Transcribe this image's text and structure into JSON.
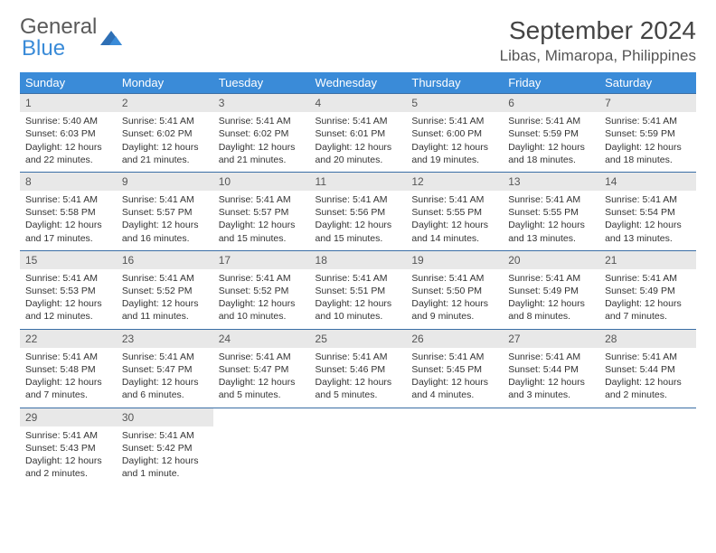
{
  "brand": {
    "line1": "General",
    "line2": "Blue"
  },
  "title": "September 2024",
  "subtitle": "Libas, Mimaropa, Philippines",
  "colors": {
    "header_bg": "#3a8bd8",
    "header_fg": "#ffffff",
    "daynum_bg": "#e8e8e8",
    "row_border": "#3a6ea5",
    "text": "#333333",
    "brand_accent": "#3a8bd8"
  },
  "typography": {
    "title_fontsize": 28,
    "subtitle_fontsize": 17,
    "cell_fontsize": 10.5,
    "header_fontsize": 13
  },
  "layout": {
    "cols": 7,
    "rows": 5,
    "col_width_pct": 14.285
  },
  "weekdays": [
    "Sunday",
    "Monday",
    "Tuesday",
    "Wednesday",
    "Thursday",
    "Friday",
    "Saturday"
  ],
  "days": [
    {
      "n": 1,
      "sunrise": "5:40 AM",
      "sunset": "6:03 PM",
      "daylight": "12 hours and 22 minutes."
    },
    {
      "n": 2,
      "sunrise": "5:41 AM",
      "sunset": "6:02 PM",
      "daylight": "12 hours and 21 minutes."
    },
    {
      "n": 3,
      "sunrise": "5:41 AM",
      "sunset": "6:02 PM",
      "daylight": "12 hours and 21 minutes."
    },
    {
      "n": 4,
      "sunrise": "5:41 AM",
      "sunset": "6:01 PM",
      "daylight": "12 hours and 20 minutes."
    },
    {
      "n": 5,
      "sunrise": "5:41 AM",
      "sunset": "6:00 PM",
      "daylight": "12 hours and 19 minutes."
    },
    {
      "n": 6,
      "sunrise": "5:41 AM",
      "sunset": "5:59 PM",
      "daylight": "12 hours and 18 minutes."
    },
    {
      "n": 7,
      "sunrise": "5:41 AM",
      "sunset": "5:59 PM",
      "daylight": "12 hours and 18 minutes."
    },
    {
      "n": 8,
      "sunrise": "5:41 AM",
      "sunset": "5:58 PM",
      "daylight": "12 hours and 17 minutes."
    },
    {
      "n": 9,
      "sunrise": "5:41 AM",
      "sunset": "5:57 PM",
      "daylight": "12 hours and 16 minutes."
    },
    {
      "n": 10,
      "sunrise": "5:41 AM",
      "sunset": "5:57 PM",
      "daylight": "12 hours and 15 minutes."
    },
    {
      "n": 11,
      "sunrise": "5:41 AM",
      "sunset": "5:56 PM",
      "daylight": "12 hours and 15 minutes."
    },
    {
      "n": 12,
      "sunrise": "5:41 AM",
      "sunset": "5:55 PM",
      "daylight": "12 hours and 14 minutes."
    },
    {
      "n": 13,
      "sunrise": "5:41 AM",
      "sunset": "5:55 PM",
      "daylight": "12 hours and 13 minutes."
    },
    {
      "n": 14,
      "sunrise": "5:41 AM",
      "sunset": "5:54 PM",
      "daylight": "12 hours and 13 minutes."
    },
    {
      "n": 15,
      "sunrise": "5:41 AM",
      "sunset": "5:53 PM",
      "daylight": "12 hours and 12 minutes."
    },
    {
      "n": 16,
      "sunrise": "5:41 AM",
      "sunset": "5:52 PM",
      "daylight": "12 hours and 11 minutes."
    },
    {
      "n": 17,
      "sunrise": "5:41 AM",
      "sunset": "5:52 PM",
      "daylight": "12 hours and 10 minutes."
    },
    {
      "n": 18,
      "sunrise": "5:41 AM",
      "sunset": "5:51 PM",
      "daylight": "12 hours and 10 minutes."
    },
    {
      "n": 19,
      "sunrise": "5:41 AM",
      "sunset": "5:50 PM",
      "daylight": "12 hours and 9 minutes."
    },
    {
      "n": 20,
      "sunrise": "5:41 AM",
      "sunset": "5:49 PM",
      "daylight": "12 hours and 8 minutes."
    },
    {
      "n": 21,
      "sunrise": "5:41 AM",
      "sunset": "5:49 PM",
      "daylight": "12 hours and 7 minutes."
    },
    {
      "n": 22,
      "sunrise": "5:41 AM",
      "sunset": "5:48 PM",
      "daylight": "12 hours and 7 minutes."
    },
    {
      "n": 23,
      "sunrise": "5:41 AM",
      "sunset": "5:47 PM",
      "daylight": "12 hours and 6 minutes."
    },
    {
      "n": 24,
      "sunrise": "5:41 AM",
      "sunset": "5:47 PM",
      "daylight": "12 hours and 5 minutes."
    },
    {
      "n": 25,
      "sunrise": "5:41 AM",
      "sunset": "5:46 PM",
      "daylight": "12 hours and 5 minutes."
    },
    {
      "n": 26,
      "sunrise": "5:41 AM",
      "sunset": "5:45 PM",
      "daylight": "12 hours and 4 minutes."
    },
    {
      "n": 27,
      "sunrise": "5:41 AM",
      "sunset": "5:44 PM",
      "daylight": "12 hours and 3 minutes."
    },
    {
      "n": 28,
      "sunrise": "5:41 AM",
      "sunset": "5:44 PM",
      "daylight": "12 hours and 2 minutes."
    },
    {
      "n": 29,
      "sunrise": "5:41 AM",
      "sunset": "5:43 PM",
      "daylight": "12 hours and 2 minutes."
    },
    {
      "n": 30,
      "sunrise": "5:41 AM",
      "sunset": "5:42 PM",
      "daylight": "12 hours and 1 minute."
    }
  ],
  "labels": {
    "sunrise": "Sunrise:",
    "sunset": "Sunset:",
    "daylight": "Daylight:"
  }
}
